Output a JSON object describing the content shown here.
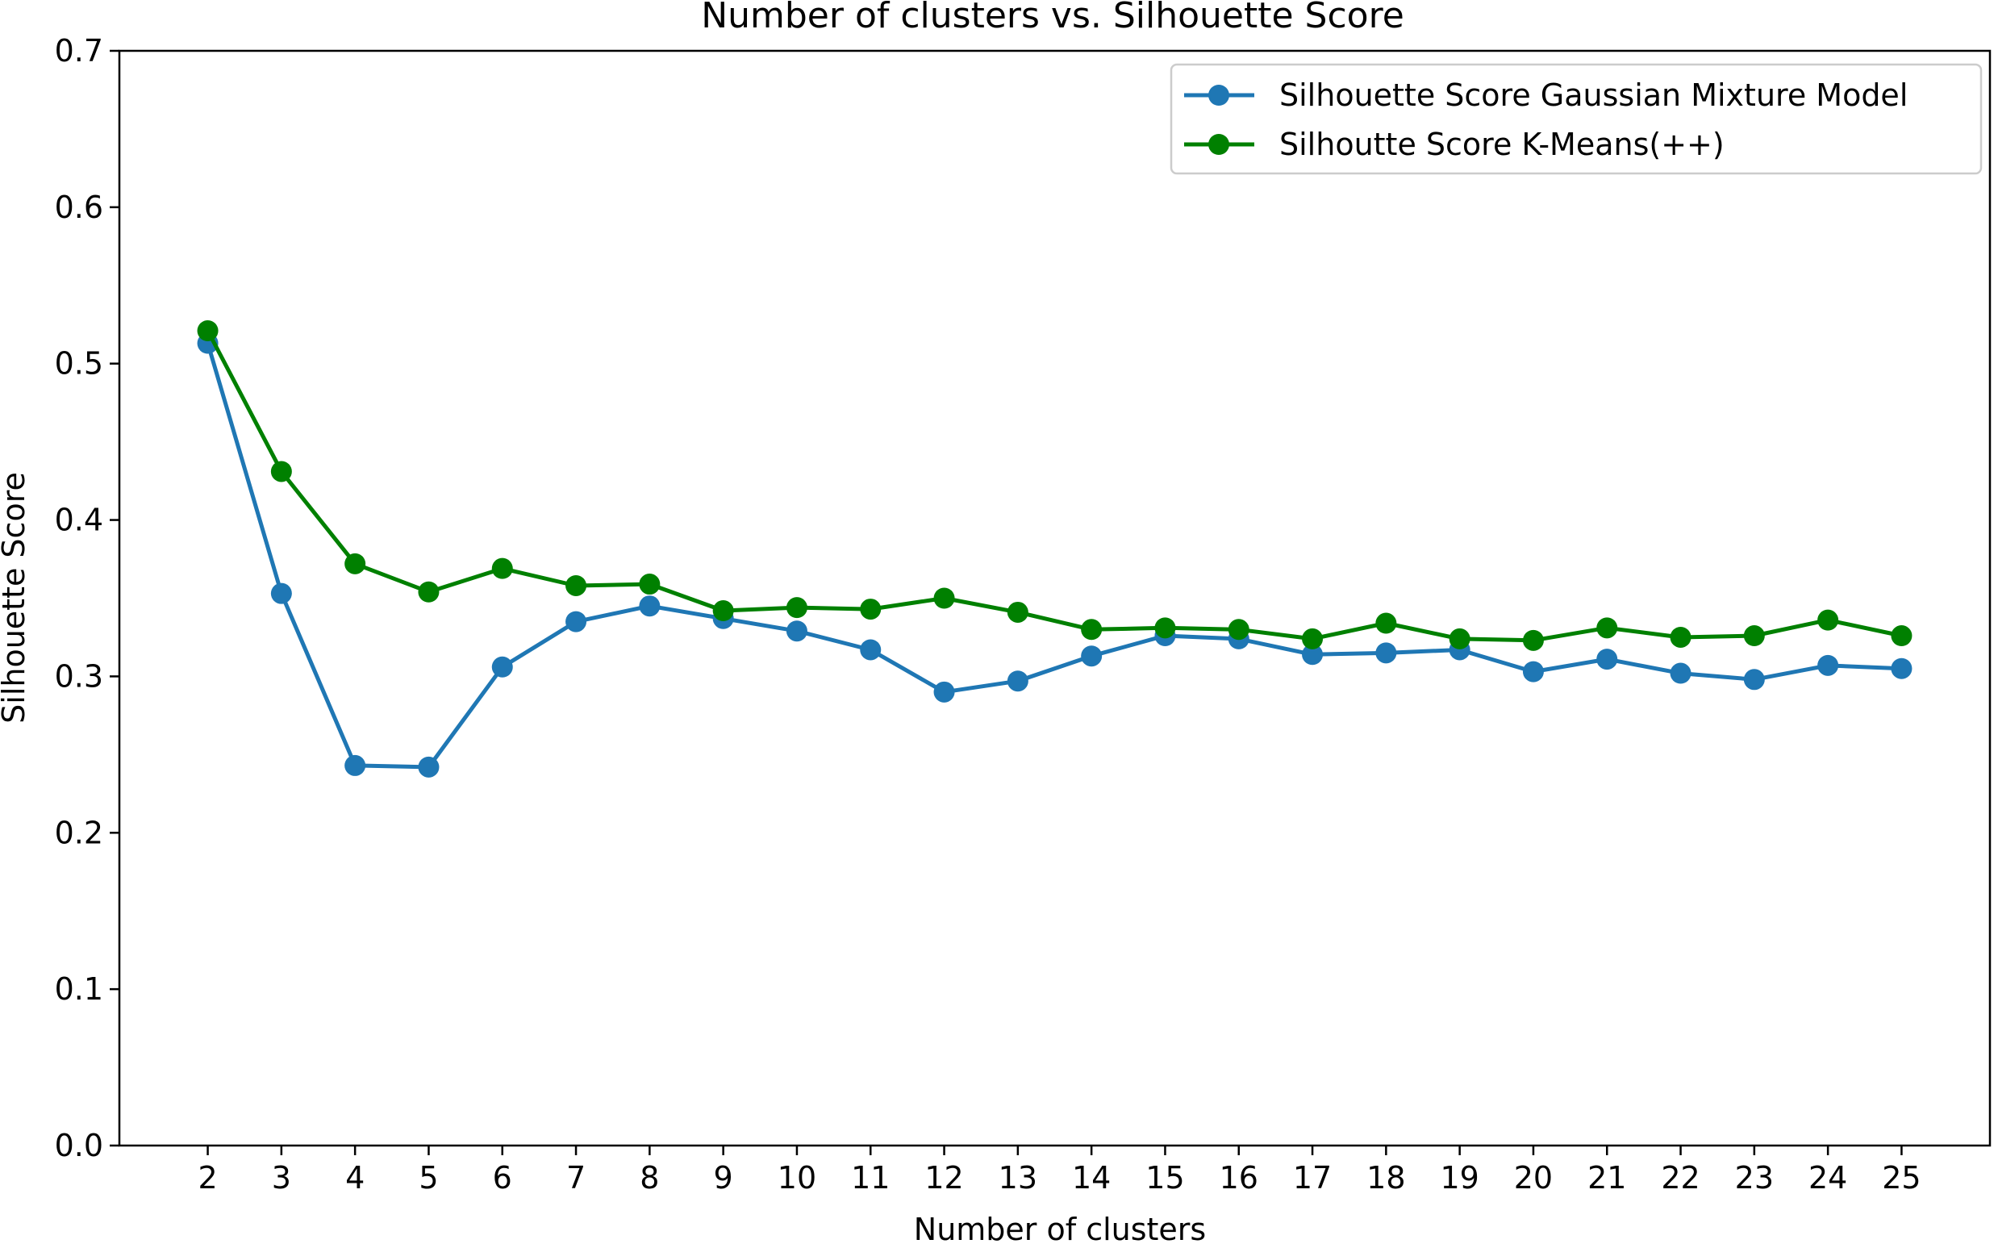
{
  "chart_data": {
    "type": "line",
    "title": "Number of clusters vs. Silhouette Score",
    "xlabel": "Number of clusters",
    "ylabel": "Silhouette Score",
    "x": [
      2,
      3,
      4,
      5,
      6,
      7,
      8,
      9,
      10,
      11,
      12,
      13,
      14,
      15,
      16,
      17,
      18,
      19,
      20,
      21,
      22,
      23,
      24,
      25
    ],
    "xlim": [
      0.8,
      26.2
    ],
    "ylim": [
      0.0,
      0.7
    ],
    "xticks": [
      2,
      3,
      4,
      5,
      6,
      7,
      8,
      9,
      10,
      11,
      12,
      13,
      14,
      15,
      16,
      17,
      18,
      19,
      20,
      21,
      22,
      23,
      24,
      25
    ],
    "yticks": [
      "0.0",
      "0.1",
      "0.2",
      "0.3",
      "0.4",
      "0.5",
      "0.6",
      "0.7"
    ],
    "grid": false,
    "legend_position": "top-right",
    "series": [
      {
        "name": "Silhouette Score Gaussian Mixture Model",
        "color": "#1f77b4",
        "marker": "circle",
        "values": [
          0.513,
          0.353,
          0.243,
          0.242,
          0.306,
          0.335,
          0.345,
          0.337,
          0.329,
          0.317,
          0.29,
          0.297,
          0.313,
          0.326,
          0.324,
          0.314,
          0.315,
          0.317,
          0.303,
          0.311,
          0.302,
          0.298,
          0.307,
          0.305
        ]
      },
      {
        "name": "Silhoutte Score K-Means(++)",
        "color": "#008000",
        "marker": "circle",
        "values": [
          0.521,
          0.431,
          0.372,
          0.354,
          0.369,
          0.358,
          0.359,
          0.342,
          0.344,
          0.343,
          0.35,
          0.341,
          0.33,
          0.331,
          0.33,
          0.324,
          0.334,
          0.324,
          0.323,
          0.331,
          0.325,
          0.326,
          0.336,
          0.326
        ]
      }
    ]
  }
}
